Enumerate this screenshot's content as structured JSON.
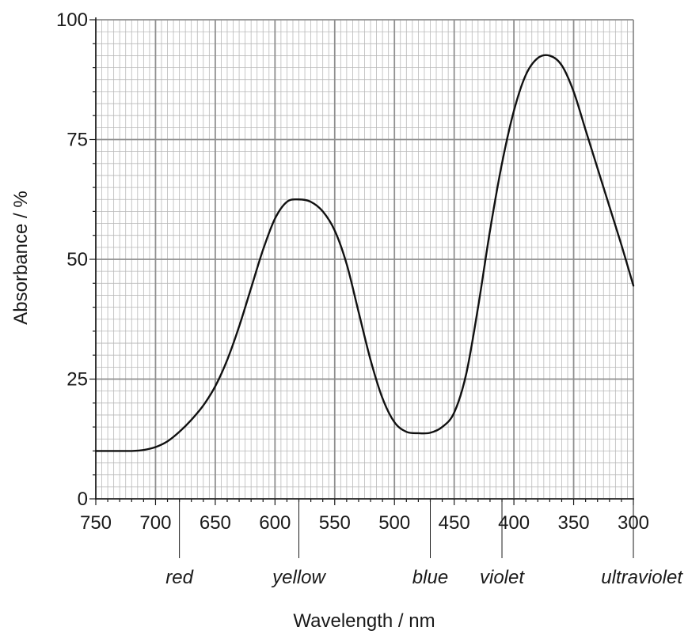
{
  "chart_data": {
    "type": "line",
    "title": "",
    "xlabel": "Wavelength / nm",
    "ylabel": "Absorbance / %",
    "xlim": [
      750,
      300
    ],
    "ylim": [
      0,
      100
    ],
    "x_reversed": true,
    "grid": true,
    "x_ticks": [
      750,
      700,
      650,
      600,
      550,
      500,
      450,
      400,
      350,
      300
    ],
    "y_ticks": [
      0,
      25,
      50,
      75,
      100
    ],
    "x_tick_labels": [
      "750",
      "700",
      "650",
      "600",
      "550",
      "500",
      "450",
      "400",
      "350",
      "300"
    ],
    "y_tick_labels": [
      "0",
      "25",
      "50",
      "75",
      "100"
    ],
    "series": [
      {
        "x": [
          750,
          740,
          730,
          720,
          710,
          700,
          690,
          680,
          670,
          660,
          650,
          640,
          630,
          620,
          610,
          600,
          590,
          580,
          570,
          560,
          550,
          540,
          530,
          520,
          510,
          500,
          490,
          480,
          470,
          460,
          450,
          440,
          430,
          420,
          410,
          400,
          390,
          380,
          370,
          360,
          350,
          340,
          330,
          320,
          310,
          300
        ],
        "y": [
          10,
          10,
          10,
          10,
          10.2,
          10.8,
          12,
          14,
          16.5,
          19.5,
          23.5,
          29,
          36,
          44,
          52,
          58.5,
          62,
          62.5,
          62,
          60,
          56,
          49,
          39,
          29,
          21,
          16,
          14,
          13.7,
          13.8,
          15,
          18,
          26,
          40,
          56,
          70,
          81,
          88.5,
          92,
          92.5,
          90.5,
          85,
          77,
          69,
          61,
          53,
          44.5
        ]
      }
    ],
    "colour_bands": [
      {
        "label": "red",
        "x": 680
      },
      {
        "label": "yellow",
        "x": 580
      },
      {
        "label": "blue",
        "x": 470
      },
      {
        "label": "violet",
        "x": 410
      },
      {
        "label": "ultraviolet",
        "x": 300
      }
    ]
  }
}
